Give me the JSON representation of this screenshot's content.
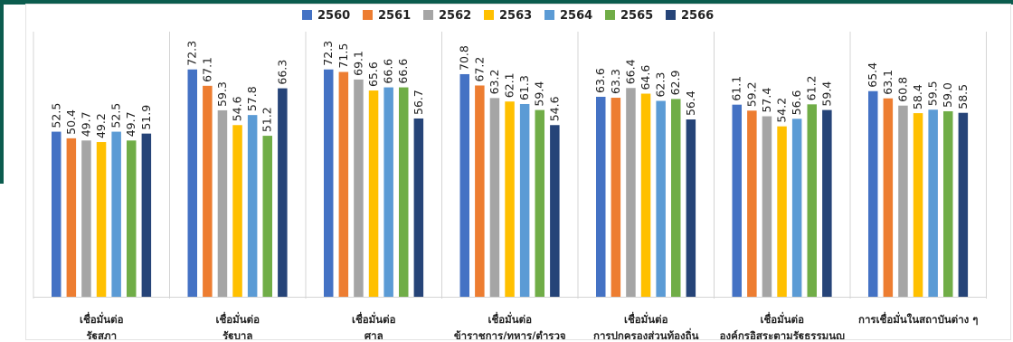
{
  "chart_data": {
    "type": "bar",
    "title": "",
    "xlabel": "",
    "ylabel": "",
    "ylim": [
      0,
      80
    ],
    "grid": false,
    "legend_placement": "top-center",
    "categories": [
      [
        "เชื่อมั่นต่อ",
        "รัฐสภา"
      ],
      [
        "เชื่อมั่นต่อ",
        "รัฐบาล"
      ],
      [
        "เชื่อมั่นต่อ",
        "ศาล"
      ],
      [
        "เชื่อมั่นต่อ",
        "ข้าราชการ/ทหาร/ตำรวจ"
      ],
      [
        "เชื่อมั่นต่อ",
        "การปกครองส่วนท้องถิ่น"
      ],
      [
        "เชื่อมั่นต่อ",
        "องค์กรอิสระตามรัฐธรรมนูญ"
      ],
      [
        "การเชื่อมั่นในสถาบันต่าง ๆ"
      ]
    ],
    "series": [
      {
        "name": "2560",
        "color": "#4472c4",
        "values": [
          52.5,
          72.3,
          72.3,
          70.8,
          63.6,
          61.1,
          65.4
        ]
      },
      {
        "name": "2561",
        "color": "#ed7d31",
        "values": [
          50.4,
          67.1,
          71.5,
          67.2,
          63.3,
          59.2,
          63.1
        ]
      },
      {
        "name": "2562",
        "color": "#a5a5a5",
        "values": [
          49.7,
          59.3,
          69.1,
          63.2,
          66.4,
          57.4,
          60.8
        ]
      },
      {
        "name": "2563",
        "color": "#ffc000",
        "values": [
          49.2,
          54.6,
          65.6,
          62.1,
          64.6,
          54.2,
          58.4
        ]
      },
      {
        "name": "2564",
        "color": "#5b9bd5",
        "values": [
          52.5,
          57.8,
          66.6,
          61.3,
          62.3,
          56.6,
          59.5
        ]
      },
      {
        "name": "2565",
        "color": "#70ad47",
        "values": [
          49.7,
          51.2,
          66.6,
          59.4,
          62.9,
          61.2,
          59.0
        ]
      },
      {
        "name": "2566",
        "color": "#264478",
        "values": [
          51.9,
          66.3,
          56.7,
          54.6,
          56.4,
          59.4,
          58.5
        ]
      }
    ]
  }
}
